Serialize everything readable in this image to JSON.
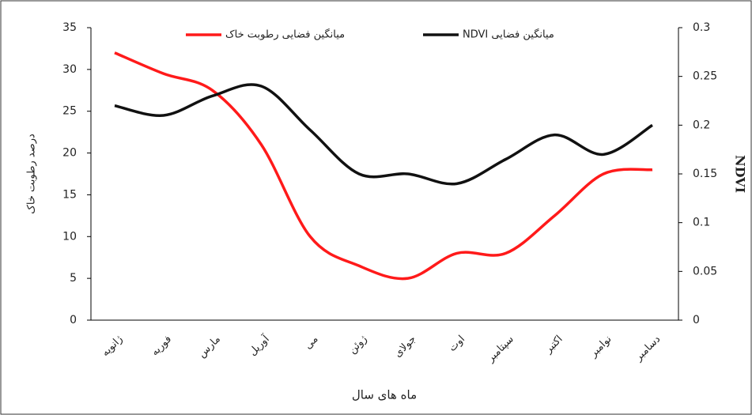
{
  "chart_data": {
    "type": "line",
    "categories": [
      "ژانویه",
      "فوریه",
      "مارس",
      "آوریل",
      "می",
      "ژوئن",
      "جولای",
      "اوت",
      "سپتامبر",
      "اکتبر",
      "نوامبر",
      "دسامبر"
    ],
    "series": [
      {
        "name": "میانگین فضایی رطوبت خاک",
        "color": "#ff1a1a",
        "values": [
          32,
          29.5,
          27.5,
          21,
          10,
          6.5,
          5,
          8,
          8,
          12.5,
          17.5,
          18
        ]
      },
      {
        "name": "میانگین فضایی NDVI",
        "color": "#111111",
        "axis": "y2",
        "values": [
          0.22,
          0.21,
          0.23,
          0.24,
          0.195,
          0.15,
          0.15,
          0.14,
          0.165,
          0.19,
          0.17,
          0.2
        ]
      }
    ],
    "ylabel": "درصد رطوبت خاک",
    "y2label": "NDVI",
    "xlabel": "ماه های سال",
    "ylim": [
      0,
      35
    ],
    "yticks": [
      0,
      5,
      10,
      15,
      20,
      25,
      30,
      35
    ],
    "y2lim": [
      0,
      0.3
    ],
    "y2ticks": [
      0,
      0.05,
      0.1,
      0.15,
      0.2,
      0.25,
      0.3
    ],
    "legend": "top"
  }
}
